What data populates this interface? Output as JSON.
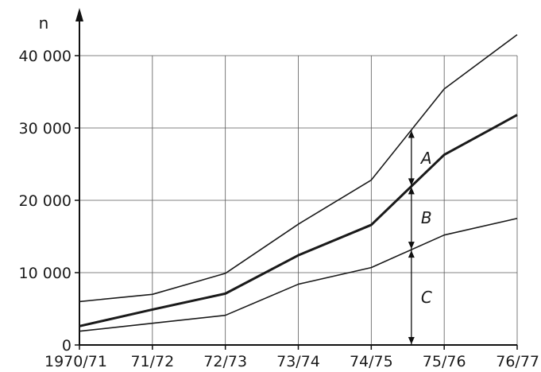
{
  "chart_data": {
    "type": "line",
    "title": "",
    "xlabel": "",
    "ylabel": "n",
    "categories": [
      "1970/71",
      "71/72",
      "72/73",
      "73/74",
      "74/75",
      "75/76",
      "76/77"
    ],
    "y_ticks": [
      "0",
      "10 000",
      "20 000",
      "30 000",
      "40 000"
    ],
    "y_tick_values": [
      0,
      10000,
      20000,
      30000,
      40000
    ],
    "ylim": [
      0,
      40000
    ],
    "grid": true,
    "series": [
      {
        "values": [
          6000,
          7000,
          9900,
          16700,
          22800,
          35400,
          42900
        ],
        "style": "thin"
      },
      {
        "values": [
          2600,
          4900,
          7100,
          12400,
          16600,
          26300,
          31800
        ],
        "style": "bold"
      },
      {
        "values": [
          1900,
          3000,
          4100,
          8400,
          10700,
          15200,
          17500
        ],
        "style": "thin"
      }
    ],
    "band_labels": [
      "A",
      "B",
      "C"
    ],
    "band_marker_x": 4.55,
    "colors": {
      "line": "#1a1a1a",
      "grid": "#5a5a5a"
    }
  }
}
